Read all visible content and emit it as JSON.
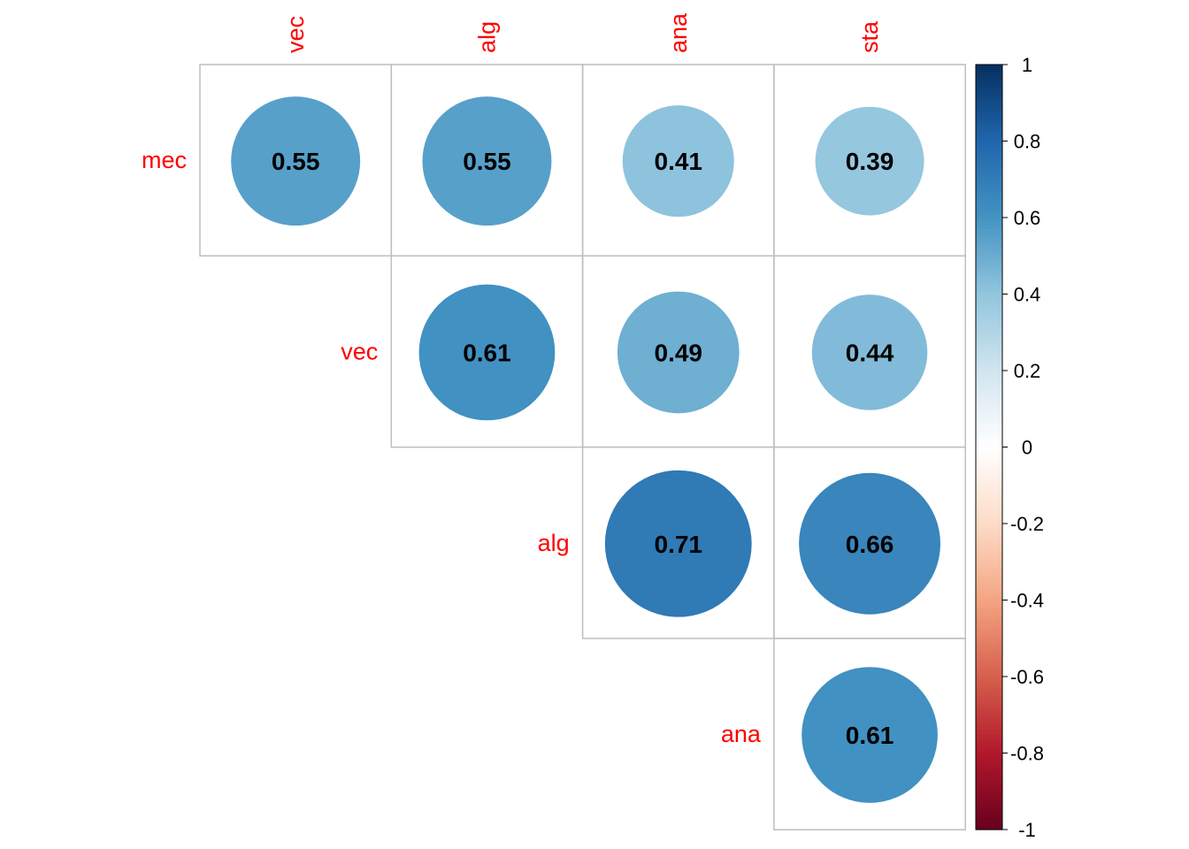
{
  "chart_data": {
    "type": "heatmap",
    "subtype": "corrplot-circle-upper",
    "row_labels": [
      "mec",
      "vec",
      "alg",
      "ana"
    ],
    "col_labels": [
      "vec",
      "alg",
      "ana",
      "sta"
    ],
    "cells": [
      {
        "row": "mec",
        "col": "vec",
        "value": 0.55,
        "label": "0.55"
      },
      {
        "row": "mec",
        "col": "alg",
        "value": 0.55,
        "label": "0.55"
      },
      {
        "row": "mec",
        "col": "ana",
        "value": 0.41,
        "label": "0.41"
      },
      {
        "row": "mec",
        "col": "sta",
        "value": 0.39,
        "label": "0.39"
      },
      {
        "row": "vec",
        "col": "alg",
        "value": 0.61,
        "label": "0.61"
      },
      {
        "row": "vec",
        "col": "ana",
        "value": 0.49,
        "label": "0.49"
      },
      {
        "row": "vec",
        "col": "sta",
        "value": 0.44,
        "label": "0.44"
      },
      {
        "row": "alg",
        "col": "ana",
        "value": 0.71,
        "label": "0.71"
      },
      {
        "row": "alg",
        "col": "sta",
        "value": 0.66,
        "label": "0.66"
      },
      {
        "row": "ana",
        "col": "sta",
        "value": 0.61,
        "label": "0.61"
      }
    ],
    "colorbar": {
      "range": [
        -1,
        1
      ],
      "ticks": [
        "1",
        "0.8",
        "0.6",
        "0.4",
        "0.2",
        "0",
        "-0.2",
        "-0.4",
        "-0.6",
        "-0.8",
        "-1"
      ],
      "tick_values": [
        1,
        0.8,
        0.6,
        0.4,
        0.2,
        0,
        -0.2,
        -0.4,
        -0.6,
        -0.8,
        -1
      ],
      "palette": [
        "#67001F",
        "#B2182B",
        "#D6604D",
        "#F4A582",
        "#FDDBC7",
        "#FFFFFF",
        "#D1E5F0",
        "#92C5DE",
        "#4393C3",
        "#2166AC",
        "#053061"
      ],
      "placement": "right"
    },
    "label_color": "#FF0000",
    "grid_color": "#BEBEBE"
  }
}
